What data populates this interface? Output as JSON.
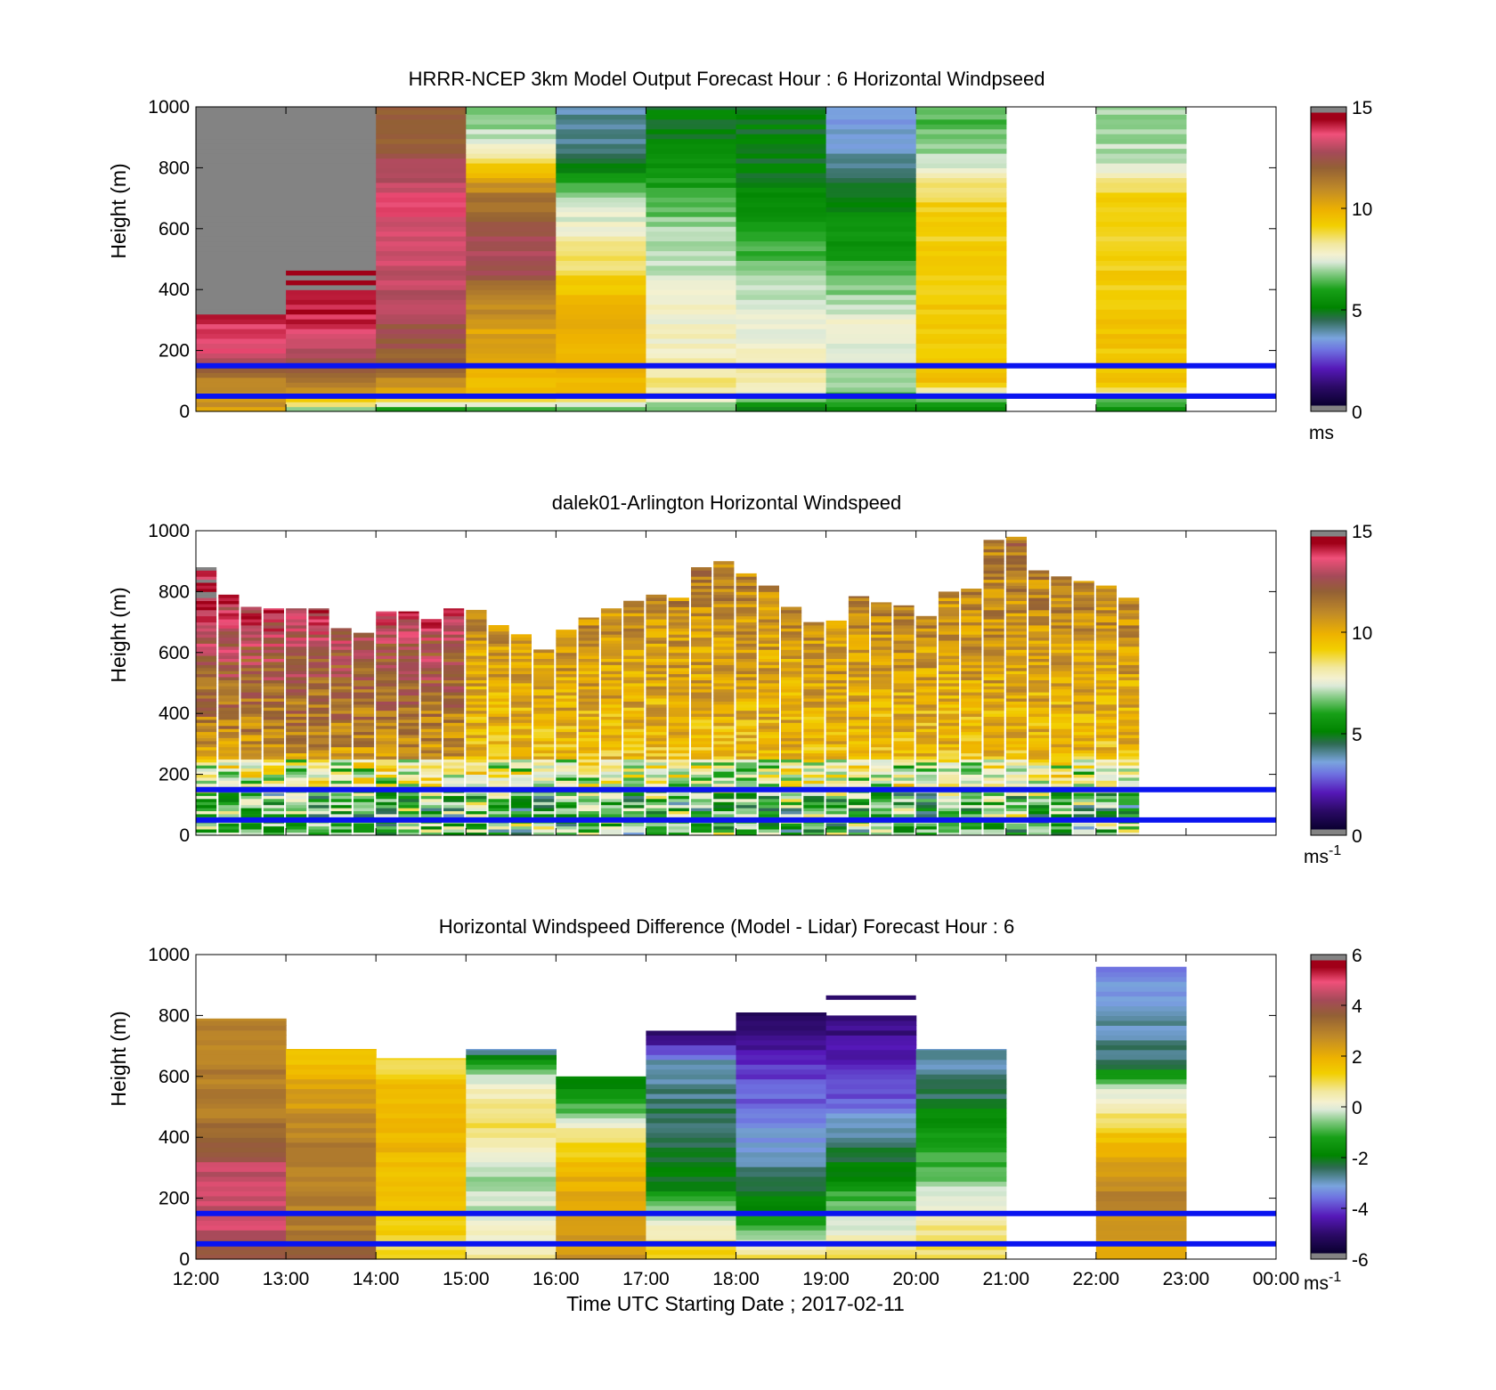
{
  "figure": {
    "xlabel": "Time UTC  Starting Date ; 2017-02-11",
    "x_tick_labels": [
      "12:00",
      "13:00",
      "14:00",
      "15:00",
      "16:00",
      "17:00",
      "18:00",
      "19:00",
      "20:00",
      "21:00",
      "22:00",
      "23:00",
      "00:00"
    ],
    "reference_line_color": "#0a14f0",
    "reference_line_heights_m": [
      150,
      50
    ]
  },
  "chart_data": [
    {
      "type": "heatmap",
      "title": "HRRR-NCEP 3km Model Output   Forecast Hour : 6 Horizontal Windpseed",
      "ylabel": "Height (m)",
      "ylim": [
        0,
        1000
      ],
      "y_ticks": [
        "0",
        "200",
        "400",
        "600",
        "800",
        "1000"
      ],
      "colorbar": {
        "min": 0,
        "max": 15,
        "ticks": [
          "0",
          "5",
          "10",
          "15"
        ],
        "unit": "ms"
      },
      "columns": [
        {
          "x": "12:00",
          "profile": [
            [
              0,
              10.5
            ],
            [
              100,
              11
            ],
            [
              200,
              13.5
            ],
            [
              300,
              14
            ],
            [
              400,
              16
            ]
          ]
        },
        {
          "x": "13:00",
          "profile": [
            [
              0,
              6.5
            ],
            [
              50,
              10
            ],
            [
              100,
              11.5
            ],
            [
              200,
              13
            ],
            [
              300,
              14
            ],
            [
              400,
              14.5
            ],
            [
              600,
              16
            ]
          ]
        },
        {
          "x": "14:00",
          "profile": [
            [
              0,
              5
            ],
            [
              50,
              10
            ],
            [
              150,
              12
            ],
            [
              400,
              13
            ],
            [
              700,
              13.5
            ],
            [
              900,
              12
            ]
          ]
        },
        {
          "x": "15:00",
          "profile": [
            [
              0,
              6
            ],
            [
              50,
              9.5
            ],
            [
              300,
              10.5
            ],
            [
              500,
              13
            ],
            [
              700,
              11.5
            ],
            [
              800,
              9.5
            ],
            [
              900,
              7
            ]
          ]
        },
        {
          "x": "16:00",
          "profile": [
            [
              0,
              6
            ],
            [
              50,
              9.5
            ],
            [
              300,
              10
            ],
            [
              700,
              7
            ],
            [
              800,
              5
            ],
            [
              900,
              4
            ]
          ]
        },
        {
          "x": "17:00",
          "profile": [
            [
              0,
              6
            ],
            [
              50,
              8.5
            ],
            [
              200,
              8
            ],
            [
              600,
              7
            ],
            [
              800,
              5.5
            ],
            [
              900,
              5
            ]
          ]
        },
        {
          "x": "18:00",
          "profile": [
            [
              0,
              5
            ],
            [
              100,
              8.5
            ],
            [
              400,
              7
            ],
            [
              600,
              6
            ],
            [
              700,
              5.5
            ],
            [
              800,
              5
            ],
            [
              900,
              5
            ]
          ]
        },
        {
          "x": "19:00",
          "profile": [
            [
              0,
              5.5
            ],
            [
              100,
              7
            ],
            [
              300,
              7.5
            ],
            [
              500,
              6
            ],
            [
              700,
              5
            ],
            [
              900,
              3.5
            ]
          ]
        },
        {
          "x": "20:00",
          "profile": [
            [
              0,
              5
            ],
            [
              100,
              9.5
            ],
            [
              700,
              9
            ],
            [
              800,
              7.5
            ],
            [
              900,
              6.5
            ]
          ]
        },
        {
          "x": "22:00",
          "profile": [
            [
              0,
              5
            ],
            [
              100,
              9.5
            ],
            [
              700,
              9
            ],
            [
              800,
              7.5
            ],
            [
              900,
              7
            ]
          ]
        }
      ]
    },
    {
      "type": "heatmap",
      "title": "dalek01-Arlington  Horizontal Windspeed",
      "ylabel": "Height (m)",
      "ylim": [
        0,
        1000
      ],
      "y_ticks": [
        "0",
        "200",
        "400",
        "600",
        "800",
        "1000"
      ],
      "colorbar": {
        "min": 0,
        "max": 15,
        "ticks": [
          "0",
          "5",
          "10",
          "15"
        ],
        "unit": "ms-1"
      },
      "x_range_hours": [
        12,
        24
      ],
      "profile_interval_minutes": 15,
      "top_heights_m": [
        880,
        790,
        750,
        745,
        745,
        745,
        680,
        665,
        735,
        735,
        710,
        745,
        740,
        690,
        660,
        610,
        675,
        715,
        745,
        770,
        790,
        780,
        880,
        900,
        860,
        820,
        750,
        700,
        705,
        785,
        765,
        755,
        720,
        800,
        810,
        970,
        980,
        870,
        850,
        835,
        820,
        780
      ]
    },
    {
      "type": "heatmap",
      "title": "Horizontal Windspeed Difference (Model - Lidar) Forecast Hour : 6",
      "ylabel": "Height (m)",
      "ylim": [
        0,
        1000
      ],
      "y_ticks": [
        "0",
        "200",
        "400",
        "600",
        "800",
        "1000"
      ],
      "colorbar": {
        "min": -6,
        "max": 6,
        "ticks": [
          "-6",
          "-4",
          "-2",
          "0",
          "2",
          "4",
          "6"
        ],
        "unit": "ms-1"
      },
      "columns": [
        {
          "x": "12:00",
          "top": 790,
          "profile": [
            [
              0,
              3.5
            ],
            [
              100,
              4.5
            ],
            [
              300,
              4.5
            ],
            [
              400,
              3.5
            ],
            [
              500,
              3
            ],
            [
              790,
              3
            ]
          ]
        },
        {
          "x": "13:00",
          "top": 690,
          "profile": [
            [
              0,
              4
            ],
            [
              100,
              3
            ],
            [
              400,
              3
            ],
            [
              600,
              2
            ],
            [
              690,
              1.5
            ]
          ]
        },
        {
          "x": "14:00",
          "top": 660,
          "profile": [
            [
              0,
              1
            ],
            [
              200,
              1.5
            ],
            [
              500,
              2
            ],
            [
              660,
              1
            ]
          ]
        },
        {
          "x": "15:00",
          "top": 690,
          "profile": [
            [
              0,
              0.5
            ],
            [
              250,
              -0.5
            ],
            [
              450,
              1
            ],
            [
              600,
              0
            ],
            [
              690,
              -3
            ]
          ]
        },
        {
          "x": "16:00",
          "top": 600,
          "profile": [
            [
              0,
              2.5
            ],
            [
              250,
              2
            ],
            [
              400,
              1
            ],
            [
              500,
              -1
            ],
            [
              600,
              -2
            ]
          ]
        },
        {
          "x": "17:00",
          "top": 750,
          "profile": [
            [
              0,
              1.5
            ],
            [
              150,
              -0.5
            ],
            [
              250,
              -2
            ],
            [
              500,
              -2.5
            ],
            [
              650,
              -3
            ],
            [
              750,
              -5.5
            ]
          ]
        },
        {
          "x": "18:00",
          "top": 810,
          "profile": [
            [
              0,
              1
            ],
            [
              100,
              -1
            ],
            [
              200,
              -2
            ],
            [
              450,
              -3.5
            ],
            [
              600,
              -4
            ],
            [
              700,
              -4.5
            ],
            [
              810,
              -5.5
            ]
          ]
        },
        {
          "x": "19:00",
          "top": 800,
          "profile": [
            [
              0,
              1
            ],
            [
              150,
              -0.5
            ],
            [
              300,
              -2
            ],
            [
              450,
              -3
            ],
            [
              550,
              -4
            ],
            [
              700,
              -4.5
            ],
            [
              800,
              -5
            ]
          ]
        },
        {
          "x": "20:00",
          "top": 690,
          "profile": [
            [
              0,
              1
            ],
            [
              150,
              0.5
            ],
            [
              300,
              -1
            ],
            [
              450,
              -1.5
            ],
            [
              550,
              -2.5
            ],
            [
              690,
              -3
            ]
          ]
        },
        {
          "x": "22:00",
          "top": 960,
          "profile": [
            [
              0,
              2
            ],
            [
              200,
              3
            ],
            [
              400,
              1.5
            ],
            [
              550,
              0
            ],
            [
              650,
              -2.5
            ],
            [
              800,
              -3
            ],
            [
              960,
              -3.5
            ]
          ]
        }
      ],
      "extra_segment": {
        "x": "19:00",
        "height_m": 860,
        "value": -5
      }
    }
  ]
}
